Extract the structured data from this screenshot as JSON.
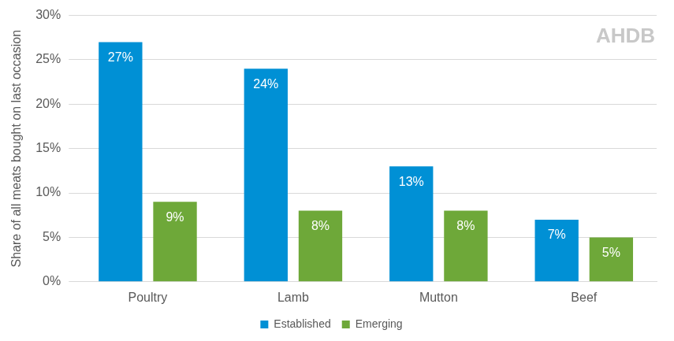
{
  "chart_data": {
    "type": "bar",
    "y_label": "Share of all meats bought on last occasion",
    "annotations": [
      "AHDB"
    ],
    "categories": [
      "Poultry",
      "Lamb",
      "Mutton",
      "Beef"
    ],
    "series": [
      {
        "name": "Established",
        "color": "#0090d5",
        "values": [
          27,
          24,
          13,
          7
        ],
        "value_labels": [
          "27%",
          "24%",
          "13%",
          "7%"
        ]
      },
      {
        "name": "Emerging",
        "color": "#6ea839",
        "values": [
          9,
          8,
          8,
          5
        ],
        "value_labels": [
          "9%",
          "8%",
          "8%",
          "5%"
        ]
      }
    ],
    "ylim": [
      0,
      30
    ],
    "yticks": [
      {
        "value": 0,
        "label": "0%"
      },
      {
        "value": 5,
        "label": "5%"
      },
      {
        "value": 10,
        "label": "10%"
      },
      {
        "value": 15,
        "label": "15%"
      },
      {
        "value": 20,
        "label": "20%"
      },
      {
        "value": 25,
        "label": "25%"
      },
      {
        "value": 30,
        "label": "30%"
      }
    ],
    "grid": true,
    "legend": "bottom",
    "data_labels": true
  }
}
